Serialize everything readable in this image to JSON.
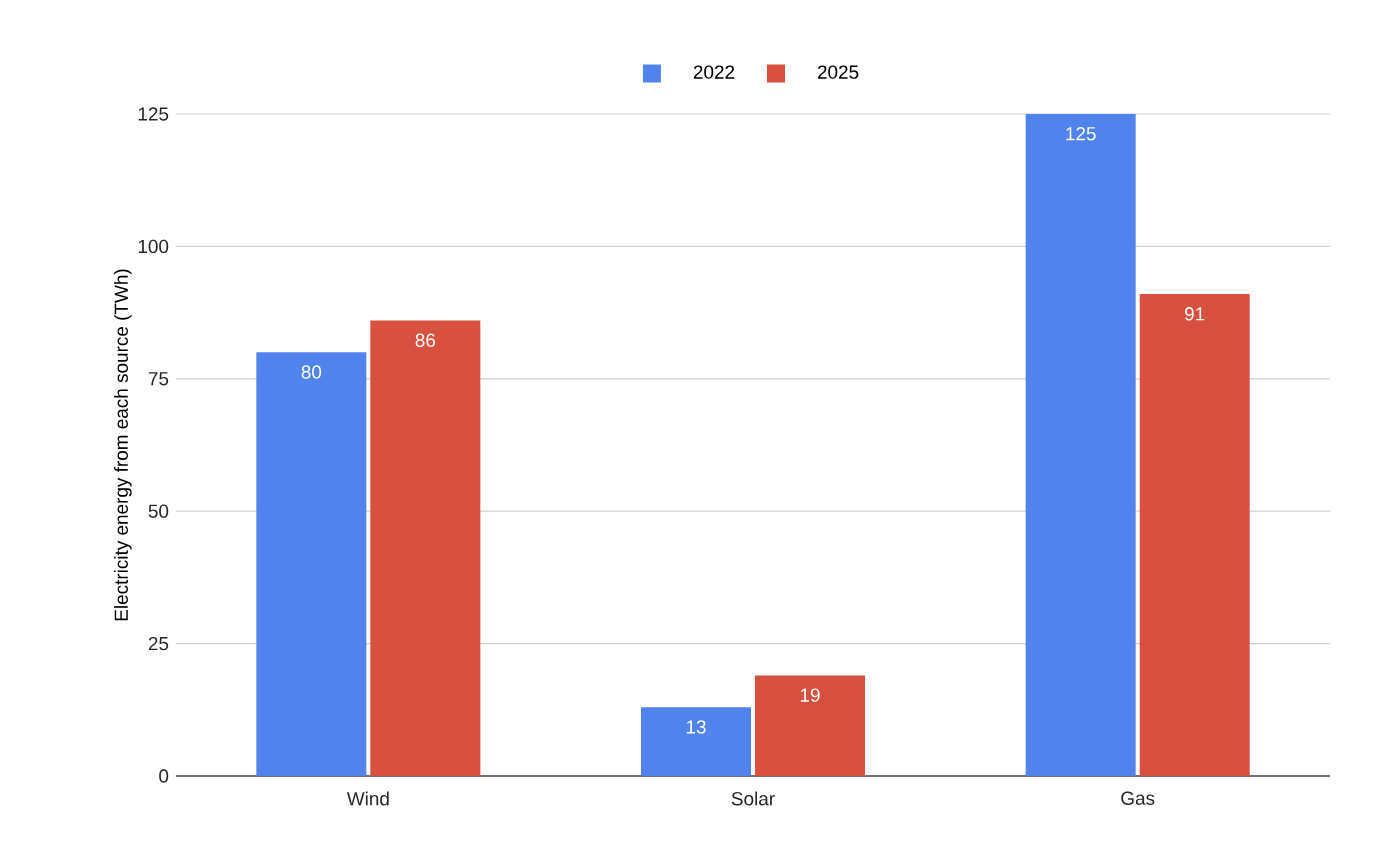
{
  "chart_data": {
    "type": "bar",
    "ylabel": "Electricity energy from each source (TWh)",
    "categories": [
      "Wind",
      "Solar",
      "Gas"
    ],
    "series": [
      {
        "name": "2022",
        "color": "#5183ec",
        "values": [
          80,
          13,
          125
        ]
      },
      {
        "name": "2025",
        "color": "#d8503f",
        "values": [
          86,
          19,
          91
        ]
      }
    ],
    "ylim": [
      0,
      125
    ],
    "yticks": [
      0,
      25,
      50,
      75,
      100,
      125
    ],
    "grid": "y",
    "legend": "top",
    "data_labels": true
  }
}
